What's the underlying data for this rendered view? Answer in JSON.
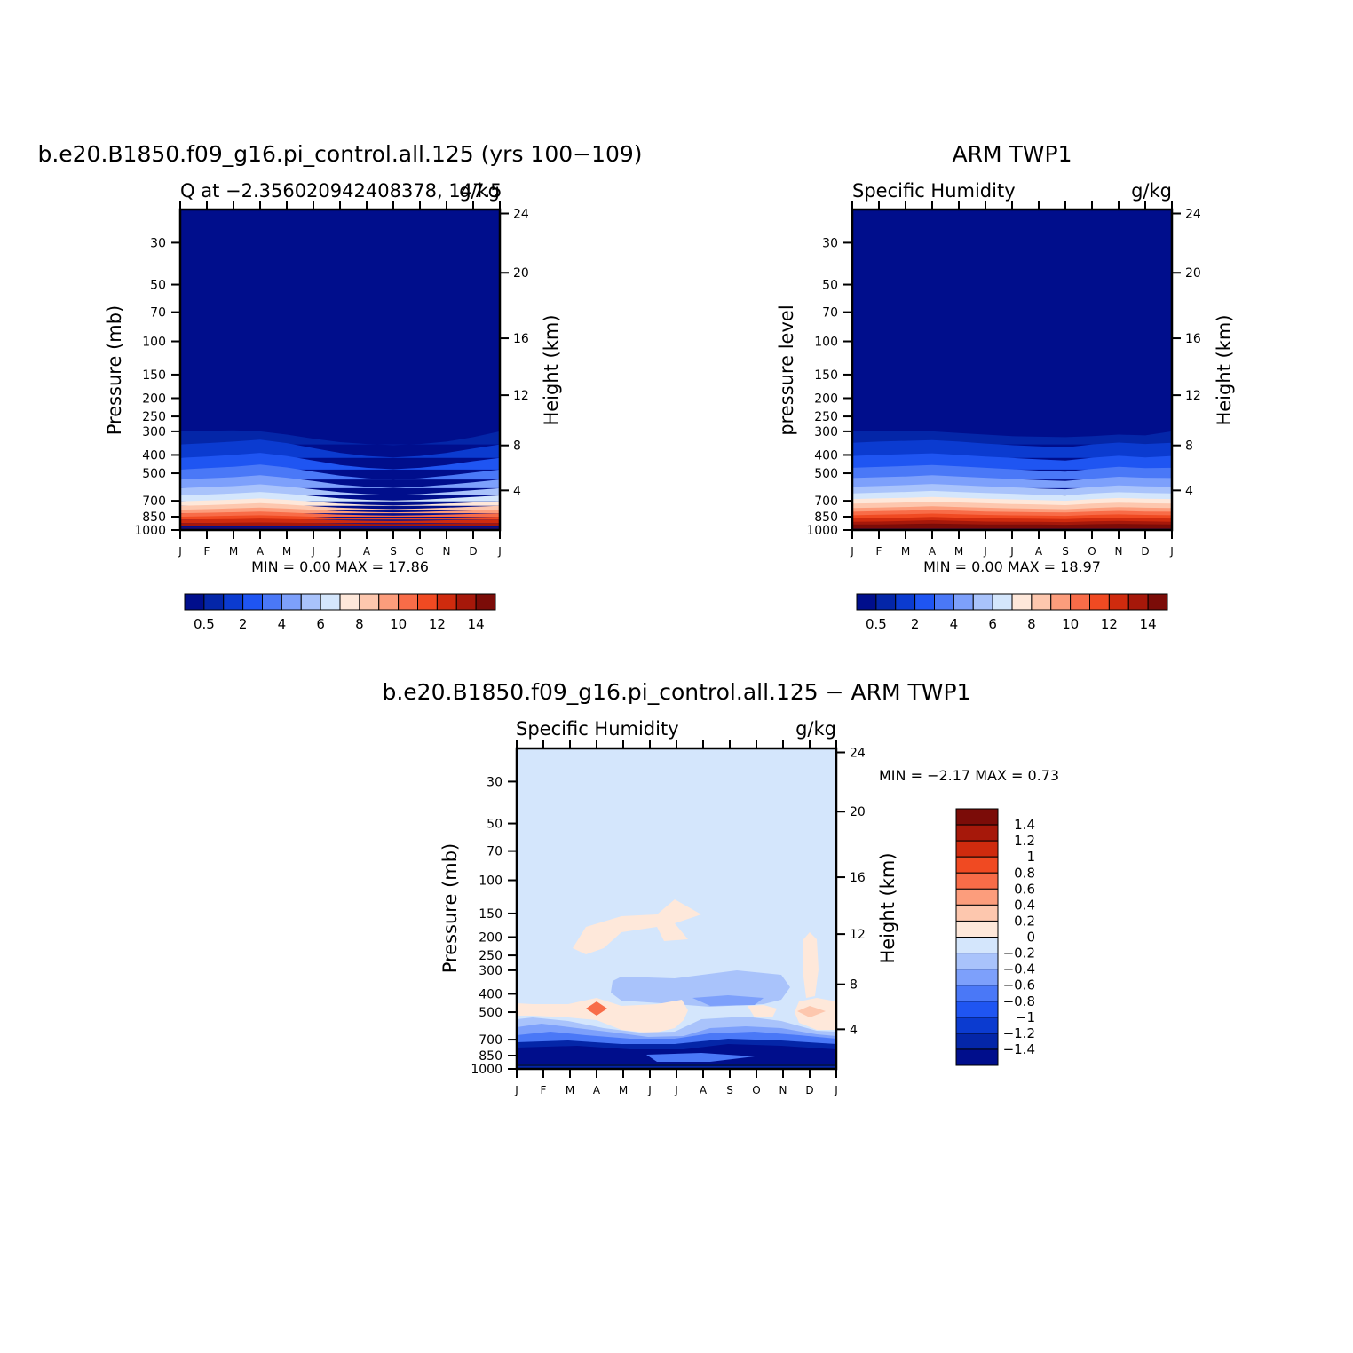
{
  "chart_data": [
    {
      "type": "heatmap",
      "title": "b.e20.B1850.f09_g16.pi_control.all.125 (yrs 100−109)",
      "subtitle_left": "Q at −2.356020942408378, 147.5",
      "subtitle_right": "g/kg",
      "ylabel": "Pressure (mb)",
      "ylabel_right": "Height (km)",
      "x_tick_labels": [
        "J",
        "F",
        "M",
        "A",
        "M",
        "J",
        "J",
        "A",
        "S",
        "O",
        "N",
        "D",
        "J"
      ],
      "y_tick_labels": [
        "30",
        "50",
        "70",
        "100",
        "150",
        "200",
        "250",
        "300",
        "400",
        "500",
        "700",
        "850",
        "1000"
      ],
      "y_right_tick_labels": [
        "24",
        "20",
        "16",
        "12",
        "8",
        "4"
      ],
      "ylim": [
        1000,
        20
      ],
      "y_scale": "log",
      "stats": "MIN =    0.00  MAX =   17.86",
      "min": 0.0,
      "max": 17.86,
      "colorbar_labels": [
        "0.5",
        "2",
        "4",
        "6",
        "8",
        "10",
        "12",
        "14"
      ],
      "colorbar_colors": [
        "#000e8c",
        "#0426a8",
        "#0b3bd0",
        "#1f55f2",
        "#4a78f7",
        "#7da0fb",
        "#a9c3fb",
        "#d4e6fc",
        "#fee8da",
        "#fdc7ae",
        "#fc9d7c",
        "#f86c48",
        "#f04a22",
        "#cf2b0e",
        "#a6180a",
        "#7b0c08"
      ],
      "colorbar_position": "bottom",
      "bands": [
        {
          "p_bottom": 1000,
          "top": [
            1000,
            1000,
            1000,
            1000,
            1000,
            1000,
            1000,
            1000,
            1000,
            1000,
            1000,
            1000,
            1000
          ]
        },
        {
          "p_bottom": 980,
          "top": [
            975,
            975,
            975,
            975,
            975,
            975,
            975,
            975,
            975,
            975,
            975,
            975,
            975
          ]
        },
        {
          "p_bottom": 958,
          "top": [
            920,
            918,
            915,
            912,
            915,
            920,
            925,
            928,
            930,
            928,
            925,
            922,
            920
          ]
        },
        {
          "p_bottom": 920,
          "top": [
            880,
            878,
            875,
            870,
            875,
            880,
            888,
            892,
            895,
            892,
            888,
            884,
            880
          ]
        },
        {
          "p_bottom": 880,
          "top": [
            850,
            845,
            840,
            835,
            842,
            850,
            860,
            866,
            868,
            865,
            860,
            855,
            850
          ]
        },
        {
          "p_bottom": 850,
          "top": [
            815,
            810,
            805,
            798,
            808,
            818,
            828,
            835,
            838,
            835,
            828,
            822,
            815
          ]
        },
        {
          "p_bottom": 815,
          "top": [
            780,
            775,
            768,
            760,
            770,
            782,
            795,
            802,
            806,
            802,
            795,
            788,
            780
          ]
        },
        {
          "p_bottom": 780,
          "top": [
            745,
            738,
            730,
            720,
            732,
            748,
            762,
            770,
            775,
            770,
            762,
            752,
            745
          ]
        },
        {
          "p_bottom": 745,
          "top": [
            705,
            698,
            690,
            680,
            692,
            708,
            725,
            735,
            740,
            735,
            725,
            715,
            705
          ]
        },
        {
          "p_bottom": 705,
          "top": [
            655,
            648,
            640,
            628,
            642,
            660,
            680,
            692,
            698,
            692,
            680,
            668,
            655
          ]
        },
        {
          "p_bottom": 655,
          "top": [
            600,
            592,
            585,
            572,
            588,
            608,
            630,
            645,
            652,
            645,
            630,
            615,
            600
          ]
        },
        {
          "p_bottom": 600,
          "top": [
            540,
            532,
            525,
            512,
            528,
            550,
            575,
            590,
            598,
            590,
            575,
            558,
            540
          ]
        },
        {
          "p_bottom": 540,
          "top": [
            478,
            470,
            462,
            450,
            466,
            490,
            515,
            532,
            540,
            532,
            515,
            496,
            478
          ]
        },
        {
          "p_bottom": 478,
          "top": [
            415,
            408,
            400,
            390,
            405,
            428,
            452,
            468,
            476,
            468,
            452,
            432,
            415
          ]
        },
        {
          "p_bottom": 415,
          "top": [
            352,
            346,
            340,
            332,
            346,
            368,
            390,
            405,
            412,
            405,
            390,
            370,
            352
          ]
        },
        {
          "p_bottom": 352,
          "top": [
            300,
            298,
            296,
            300,
            312,
            328,
            342,
            350,
            355,
            350,
            340,
            322,
            300
          ]
        }
      ]
    },
    {
      "type": "heatmap",
      "title": "ARM TWP1",
      "subtitle_left": "Specific Humidity",
      "subtitle_right": "g/kg",
      "ylabel": "pressure level",
      "ylabel_right": "Height (km)",
      "x_tick_labels": [
        "J",
        "F",
        "M",
        "A",
        "M",
        "J",
        "J",
        "A",
        "S",
        "O",
        "N",
        "D",
        "J"
      ],
      "y_tick_labels": [
        "30",
        "50",
        "70",
        "100",
        "150",
        "200",
        "250",
        "300",
        "400",
        "500",
        "700",
        "850",
        "1000"
      ],
      "y_right_tick_labels": [
        "24",
        "20",
        "16",
        "12",
        "8",
        "4"
      ],
      "ylim": [
        1000,
        20
      ],
      "y_scale": "log",
      "stats": "MIN =    0.00  MAX =   18.97",
      "min": 0.0,
      "max": 18.97,
      "colorbar_labels": [
        "0.5",
        "2",
        "4",
        "6",
        "8",
        "10",
        "12",
        "14"
      ],
      "colorbar_colors": [
        "#000e8c",
        "#0426a8",
        "#0b3bd0",
        "#1f55f2",
        "#4a78f7",
        "#7da0fb",
        "#a9c3fb",
        "#d4e6fc",
        "#fee8da",
        "#fdc7ae",
        "#fc9d7c",
        "#f86c48",
        "#f04a22",
        "#cf2b0e",
        "#a6180a",
        "#7b0c08"
      ],
      "colorbar_position": "bottom",
      "bands": [
        {
          "p_bottom": 1000,
          "top": [
            1000,
            1000,
            1000,
            1000,
            1000,
            1000,
            1000,
            1000,
            1000,
            1000,
            1000,
            1000,
            1000
          ]
        },
        {
          "p_bottom": 985,
          "top": [
            935,
            935,
            930,
            925,
            930,
            935,
            935,
            935,
            938,
            932,
            928,
            932,
            935
          ]
        },
        {
          "p_bottom": 955,
          "top": [
            905,
            902,
            895,
            888,
            895,
            902,
            905,
            905,
            908,
            900,
            895,
            900,
            905
          ]
        },
        {
          "p_bottom": 920,
          "top": [
            870,
            866,
            860,
            852,
            860,
            868,
            870,
            872,
            875,
            866,
            860,
            866,
            870
          ]
        },
        {
          "p_bottom": 880,
          "top": [
            835,
            830,
            825,
            818,
            825,
            832,
            836,
            838,
            842,
            832,
            826,
            832,
            835
          ]
        },
        {
          "p_bottom": 850,
          "top": [
            800,
            795,
            790,
            782,
            790,
            798,
            802,
            805,
            808,
            798,
            792,
            798,
            800
          ]
        },
        {
          "p_bottom": 815,
          "top": [
            765,
            760,
            755,
            748,
            755,
            762,
            768,
            772,
            776,
            764,
            756,
            762,
            765
          ]
        },
        {
          "p_bottom": 780,
          "top": [
            725,
            720,
            715,
            708,
            715,
            722,
            728,
            732,
            738,
            724,
            716,
            722,
            725
          ]
        },
        {
          "p_bottom": 745,
          "top": [
            685,
            680,
            675,
            668,
            675,
            682,
            688,
            694,
            700,
            686,
            676,
            682,
            685
          ]
        },
        {
          "p_bottom": 705,
          "top": [
            640,
            634,
            628,
            620,
            628,
            636,
            642,
            650,
            656,
            640,
            630,
            636,
            640
          ]
        },
        {
          "p_bottom": 655,
          "top": [
            590,
            584,
            578,
            570,
            578,
            586,
            594,
            602,
            608,
            592,
            580,
            586,
            590
          ]
        },
        {
          "p_bottom": 600,
          "top": [
            530,
            525,
            520,
            512,
            520,
            528,
            536,
            544,
            550,
            534,
            522,
            528,
            530
          ]
        },
        {
          "p_bottom": 540,
          "top": [
            468,
            463,
            458,
            452,
            460,
            468,
            476,
            484,
            490,
            474,
            462,
            470,
            468
          ]
        },
        {
          "p_bottom": 478,
          "top": [
            405,
            400,
            396,
            392,
            400,
            408,
            415,
            422,
            428,
            414,
            404,
            412,
            405
          ]
        },
        {
          "p_bottom": 415,
          "top": [
            345,
            340,
            337,
            334,
            340,
            348,
            355,
            360,
            365,
            352,
            344,
            350,
            345
          ]
        },
        {
          "p_bottom": 352,
          "top": [
            300,
            300,
            300,
            300,
            306,
            312,
            318,
            320,
            322,
            318,
            312,
            315,
            300
          ]
        }
      ]
    },
    {
      "type": "heatmap",
      "title": "b.e20.B1850.f09_g16.pi_control.all.125 − ARM TWP1",
      "subtitle_left": "Specific Humidity",
      "subtitle_right": "g/kg",
      "ylabel": "Pressure (mb)",
      "ylabel_right": "Height (km)",
      "x_tick_labels": [
        "J",
        "F",
        "M",
        "A",
        "M",
        "J",
        "J",
        "A",
        "S",
        "O",
        "N",
        "D",
        "J"
      ],
      "y_tick_labels": [
        "30",
        "50",
        "70",
        "100",
        "150",
        "200",
        "250",
        "300",
        "400",
        "500",
        "700",
        "850",
        "1000"
      ],
      "y_right_tick_labels": [
        "24",
        "20",
        "16",
        "12",
        "8",
        "4"
      ],
      "ylim": [
        1000,
        20
      ],
      "y_scale": "log",
      "stats": "MIN =   −2.17  MAX =    0.73",
      "min": -2.17,
      "max": 0.73,
      "colorbar_labels": [
        "1.4",
        "1.2",
        "1",
        "0.8",
        "0.6",
        "0.4",
        "0.2",
        "0",
        "−0.2",
        "−0.4",
        "−0.6",
        "−0.8",
        "−1",
        "−1.2",
        "−1.4"
      ],
      "colorbar_colors": [
        "#7b0c08",
        "#a6180a",
        "#cf2b0e",
        "#f04a22",
        "#f86c48",
        "#fc9d7c",
        "#fdc7ae",
        "#fee8da",
        "#d4e6fc",
        "#a9c3fb",
        "#7da0fb",
        "#4a78f7",
        "#1f55f2",
        "#0b3bd0",
        "#0426a8",
        "#000e8c"
      ],
      "colorbar_position": "right"
    }
  ]
}
